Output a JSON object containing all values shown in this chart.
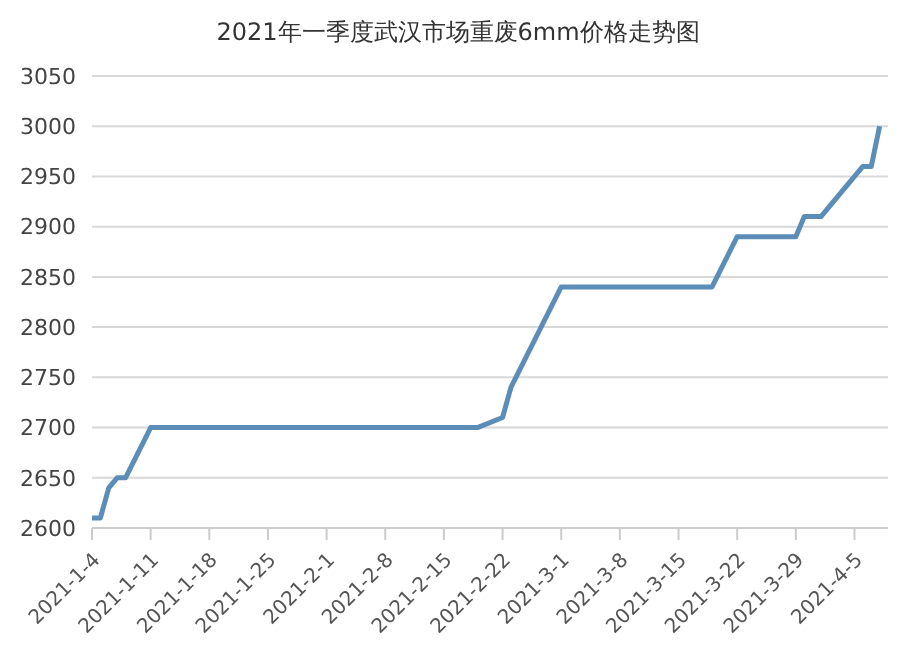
{
  "chart_data": {
    "type": "line",
    "title": "2021年一季度武汉市场重废6mm价格走势图",
    "x": [
      "2021-01-04",
      "2021-01-05",
      "2021-01-06",
      "2021-01-07",
      "2021-01-08",
      "2021-01-11",
      "2021-02-19",
      "2021-02-22",
      "2021-02-23",
      "2021-03-01",
      "2021-03-19",
      "2021-03-22",
      "2021-03-29",
      "2021-03-30",
      "2021-04-01",
      "2021-04-06",
      "2021-04-07",
      "2021-04-08"
    ],
    "series": [
      {
        "color": "#5b8db8",
        "values": [
          2610,
          2610,
          2640,
          2650,
          2650,
          2700,
          2700,
          2710,
          2740,
          2840,
          2840,
          2890,
          2890,
          2910,
          2910,
          2960,
          2960,
          3000
        ]
      }
    ],
    "xlim": [
      "2021-01-04",
      "2021-04-09"
    ],
    "xticks": [
      {
        "value": "2021-01-04",
        "label": "2021-1-4"
      },
      {
        "value": "2021-01-11",
        "label": "2021-1-11"
      },
      {
        "value": "2021-01-18",
        "label": "2021-1-18"
      },
      {
        "value": "2021-01-25",
        "label": "2021-1-25"
      },
      {
        "value": "2021-02-01",
        "label": "2021-2-1"
      },
      {
        "value": "2021-02-08",
        "label": "2021-2-8"
      },
      {
        "value": "2021-02-15",
        "label": "2021-2-15"
      },
      {
        "value": "2021-02-22",
        "label": "2021-2-22"
      },
      {
        "value": "2021-03-01",
        "label": "2021-3-1"
      },
      {
        "value": "2021-03-08",
        "label": "2021-3-8"
      },
      {
        "value": "2021-03-15",
        "label": "2021-3-15"
      },
      {
        "value": "2021-03-22",
        "label": "2021-3-22"
      },
      {
        "value": "2021-03-29",
        "label": "2021-3-29"
      },
      {
        "value": "2021-04-05",
        "label": "2021-4-5"
      }
    ],
    "ylim": [
      2600,
      3050
    ],
    "yticks": [
      2600,
      2650,
      2700,
      2750,
      2800,
      2850,
      2900,
      2950,
      3000,
      3050
    ],
    "grid": "y",
    "legend": false,
    "marker": "none",
    "line_style": "solid"
  }
}
